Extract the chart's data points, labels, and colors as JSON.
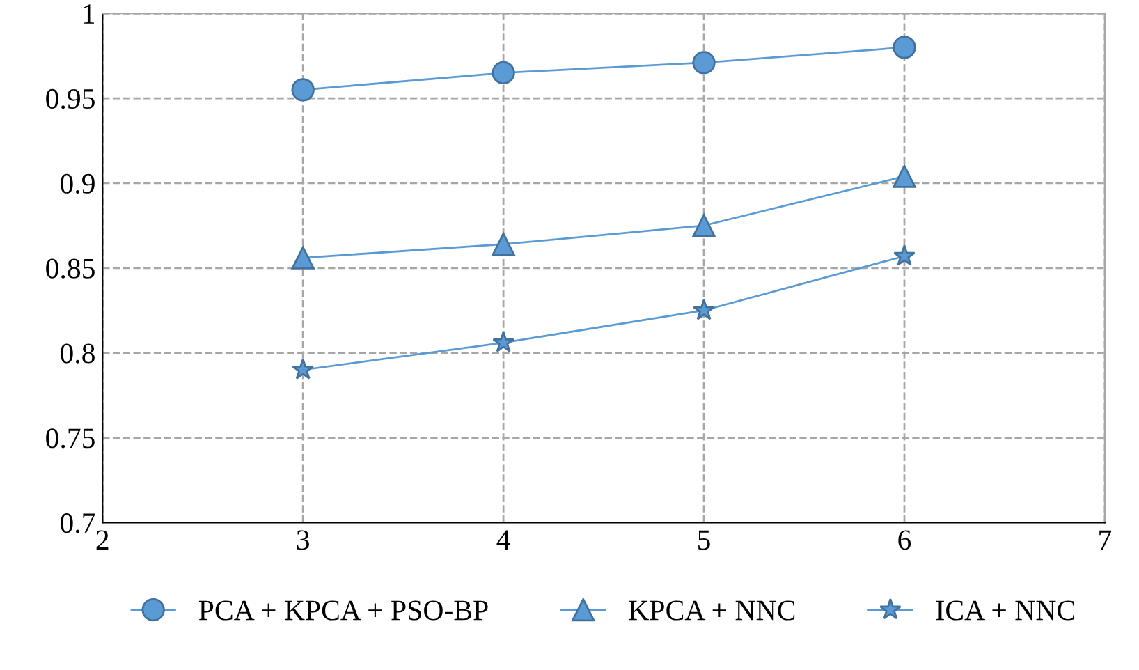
{
  "chart_data": {
    "type": "line",
    "x": [
      3,
      4,
      5,
      6
    ],
    "xlim": [
      2,
      7
    ],
    "xticks": [
      2,
      3,
      4,
      5,
      6,
      7
    ],
    "ylim": [
      0.7,
      1
    ],
    "yticks": [
      0.7,
      0.75,
      0.8,
      0.85,
      0.9,
      0.95,
      1
    ],
    "grid": true,
    "legend": "bottom",
    "line_style": "solid",
    "series": [
      {
        "name": "PCA + KPCA + PSO-BP",
        "color": "#5b9bd5",
        "marker": "circle",
        "values": [
          0.955,
          0.965,
          0.971,
          0.98
        ]
      },
      {
        "name": "KPCA + NNC",
        "color": "#5b9bd5",
        "marker": "triangle",
        "values": [
          0.856,
          0.864,
          0.875,
          0.904
        ]
      },
      {
        "name": "ICA + NNC",
        "color": "#5b9bd5",
        "marker": "star",
        "values": [
          0.79,
          0.806,
          0.825,
          0.857
        ]
      }
    ]
  }
}
